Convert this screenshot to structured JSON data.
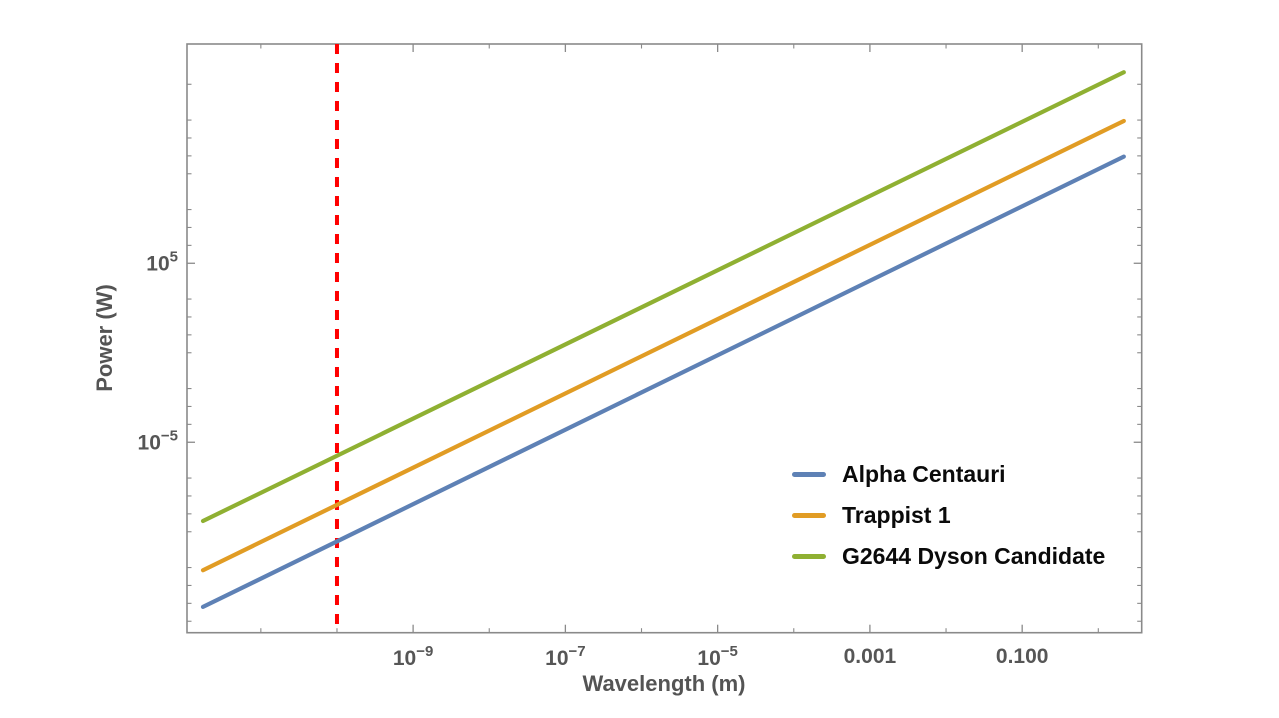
{
  "chart_data": {
    "type": "line",
    "title": "",
    "xlabel": "Wavelength (m)",
    "ylabel": "Power (W)",
    "x_scale": "log10",
    "y_scale": "log10",
    "grid": "off",
    "framed": true,
    "x_log_range": [
      -11.97,
      0.57
    ],
    "y_log_range": [
      -15.64,
      17.25
    ],
    "x_major_ticks": [
      {
        "log": -9,
        "label_type": "power",
        "base": "10",
        "exp": "−9"
      },
      {
        "log": -7,
        "label_type": "power",
        "base": "10",
        "exp": "−7"
      },
      {
        "log": -5,
        "label_type": "power",
        "base": "10",
        "exp": "−5"
      },
      {
        "log": -3,
        "label_type": "plain",
        "text": "0.001"
      },
      {
        "log": -1,
        "label_type": "plain",
        "text": "0.100"
      }
    ],
    "x_minor_ticks_log": [
      -11,
      -10,
      -8,
      -6,
      -4,
      -2,
      0
    ],
    "y_major_ticks": [
      {
        "log": 5,
        "label_type": "power",
        "base": "10",
        "exp": "5"
      },
      {
        "log": -5,
        "label_type": "power",
        "base": "10",
        "exp": "−5"
      }
    ],
    "y_minor_ticks_log": [
      -15,
      -14,
      -13,
      -12,
      -10,
      -9,
      -8,
      -7,
      -4,
      -3,
      -2,
      0,
      1,
      2,
      3,
      6,
      7,
      8,
      10,
      11,
      12,
      13,
      15
    ],
    "series": [
      {
        "name": "Alpha Centauri",
        "color": "#5E81B5",
        "points_log10": [
          [
            -11.76,
            -14.2
          ],
          [
            0.335,
            10.96
          ]
        ],
        "slope_loglog": 2.08
      },
      {
        "name": "Trappist 1",
        "color": "#E19C24",
        "points_log10": [
          [
            -11.76,
            -12.15
          ],
          [
            0.335,
            12.95
          ]
        ],
        "slope_loglog": 2.07
      },
      {
        "name": "G2644 Dyson Candidate",
        "color": "#8FB032",
        "points_log10": [
          [
            -11.76,
            -9.4
          ],
          [
            0.335,
            15.67
          ]
        ],
        "slope_loglog": 2.07
      }
    ],
    "reference_line": {
      "orientation": "vertical",
      "x_log10": -10,
      "x_value_m": 1e-10,
      "color": "#FF0000",
      "style": "dashed"
    },
    "legend": {
      "position": "inside bottom-right",
      "items": [
        "Alpha Centauri",
        "Trappist 1",
        "G2644 Dyson Candidate"
      ]
    }
  },
  "colors": {
    "background": "#FFFFFF",
    "frame": "#8A8A8A",
    "tick": "#8A8A8A",
    "tick_label": "#565656",
    "axis_label": "#545454",
    "legend_text": "#0A0A0A"
  }
}
